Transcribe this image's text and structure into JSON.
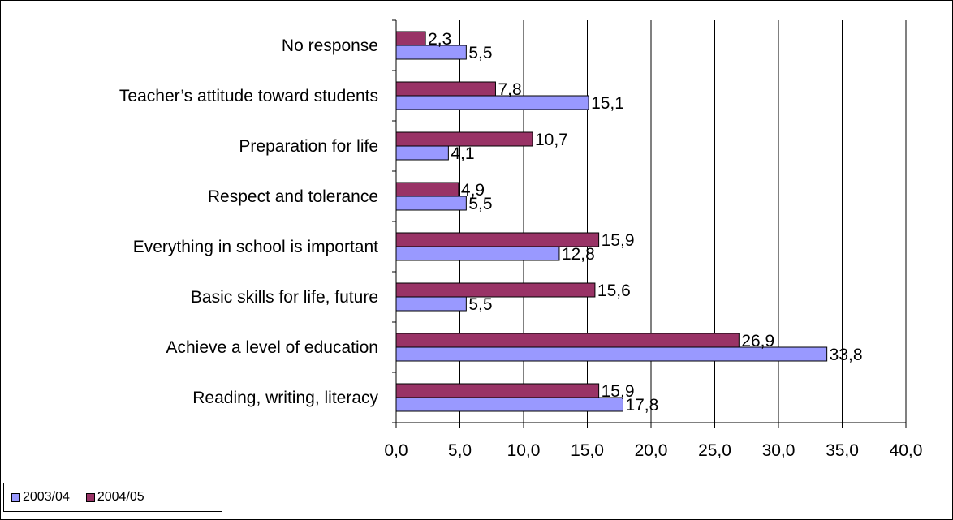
{
  "chart_data": {
    "type": "bar",
    "orientation": "horizontal",
    "categories": [
      "No response",
      "Teacher’s attitude toward students",
      "Preparation for life",
      "Respect and tolerance",
      "Everything in school is important",
      "Basic skills for life, future",
      "Achieve a level of education",
      "Reading, writing, literacy"
    ],
    "series": [
      {
        "name": "2003/04",
        "color": "#9999ff",
        "values": [
          5.5,
          15.1,
          4.1,
          5.5,
          12.8,
          5.5,
          33.8,
          17.8
        ],
        "labels": [
          "5,5",
          "15,1",
          "4,1",
          "5,5",
          "12,8",
          "5,5",
          "33,8",
          "17,8"
        ]
      },
      {
        "name": "2004/05",
        "color": "#993366",
        "values": [
          2.3,
          7.8,
          10.7,
          4.9,
          15.9,
          15.6,
          26.9,
          15.9
        ],
        "labels": [
          "2,3",
          "7,8",
          "10,7",
          "4,9",
          "15,9",
          "15,6",
          "26,9",
          "15,9"
        ]
      }
    ],
    "xlim": [
      0,
      40
    ],
    "x_ticks": [
      "0,0",
      "5,0",
      "10,0",
      "15,0",
      "20,0",
      "25,0",
      "30,0",
      "35,0",
      "40,0"
    ],
    "grid": "vertical",
    "legend_position": "bottom-left"
  }
}
